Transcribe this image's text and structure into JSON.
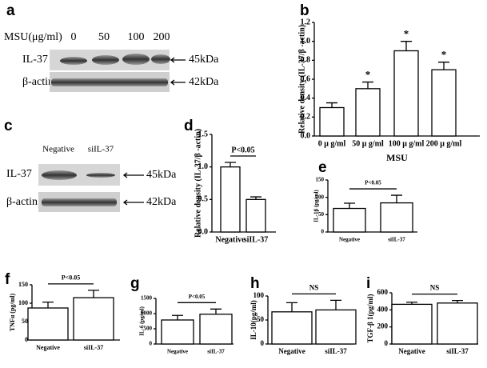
{
  "blots": [
    {
      "panel": "a",
      "treatment_label": "MSU(μg/ml)",
      "lanes": [
        "0",
        "50",
        "100",
        "200"
      ],
      "rows": [
        "IL-37",
        "β-actin"
      ],
      "sizes": [
        "45kDa",
        "42kDa"
      ]
    },
    {
      "panel": "c",
      "lanes": [
        "Negative",
        "siIL-37"
      ],
      "rows": [
        "IL-37",
        "β-actin"
      ],
      "sizes": [
        "45kDa",
        "42kDa"
      ]
    }
  ],
  "chart_data": [
    {
      "type": "bar",
      "panel": "b",
      "y_label": "Relative density (IL-37/β -actin)",
      "x_label": "MSU",
      "categories": [
        "0 μ g/ml",
        "50 μ g/ml",
        "100 μ g/ml",
        "200 μ g/ml"
      ],
      "values": [
        0.3,
        0.5,
        0.9,
        0.7
      ],
      "errors": [
        0.05,
        0.07,
        0.1,
        0.08
      ],
      "annotations": [
        null,
        "*",
        "*",
        "*"
      ],
      "color": "#ffffff",
      "ylim": [
        0,
        1.2
      ],
      "yticks": [
        {
          "value": 0,
          "label": "0.0"
        },
        0.2,
        0.4,
        0.6,
        0.8,
        {
          "value": 1,
          "label": "1.0"
        },
        1.2
      ]
    },
    {
      "type": "bar",
      "panel": "d",
      "y_label": "Relative density (IL-37/β -actin)",
      "categories": [
        "Negative",
        "siIL-37"
      ],
      "values": [
        1.0,
        0.5
      ],
      "errors": [
        0.07,
        0.04
      ],
      "significance": "P<0.05",
      "color": "#ffffff",
      "ylim": [
        0,
        1.5
      ],
      "yticks": [
        {
          "value": 0,
          "label": "0.0"
        },
        0.5,
        {
          "value": 1,
          "label": "1.0"
        },
        1.5
      ]
    },
    {
      "type": "bar",
      "panel": "e",
      "y_label": "IL-1β (pg/ml)",
      "categories": [
        "Negative",
        "siIL-37"
      ],
      "values": [
        68,
        84
      ],
      "errors": [
        15,
        22
      ],
      "significance": "P<0.05",
      "color": "#ffffff",
      "ylim": [
        0,
        150
      ],
      "yticks": [
        0,
        50,
        100,
        150
      ]
    },
    {
      "type": "bar",
      "panel": "f",
      "y_label": "TNFα (pg/ml)",
      "categories": [
        "Negative",
        "siIL-37"
      ],
      "values": [
        87,
        115
      ],
      "errors": [
        16,
        20
      ],
      "significance": "P<0.05",
      "color": "#ffffff",
      "ylim": [
        0,
        150
      ],
      "yticks": [
        0,
        50,
        100,
        150
      ]
    },
    {
      "type": "bar",
      "panel": "g",
      "y_label": "IL-6 (pg/ml)",
      "categories": [
        "Negative",
        "siIL-37"
      ],
      "values": [
        790,
        980
      ],
      "errors": [
        150,
        170
      ],
      "significance": "P<0.05",
      "color": "#ffffff",
      "ylim": [
        0,
        1500
      ],
      "yticks": [
        0,
        500,
        1000,
        1500
      ]
    },
    {
      "type": "bar",
      "panel": "h",
      "y_label": "IL-10(pg/ml)",
      "categories": [
        "Negative",
        "siIL-37"
      ],
      "values": [
        67,
        71
      ],
      "errors": [
        19,
        20
      ],
      "significance": "NS",
      "color": "#ffffff",
      "ylim": [
        0,
        100
      ],
      "yticks": [
        0,
        50,
        100
      ]
    },
    {
      "type": "bar",
      "panel": "i",
      "y_label": "TGF-β 1(pg/ml)",
      "categories": [
        "Negative",
        "siIL-37"
      ],
      "values": [
        465,
        480
      ],
      "errors": [
        25,
        30
      ],
      "significance": "NS",
      "color": "#ffffff",
      "ylim": [
        0,
        600
      ],
      "yticks": [
        0,
        200,
        400,
        600
      ]
    }
  ]
}
